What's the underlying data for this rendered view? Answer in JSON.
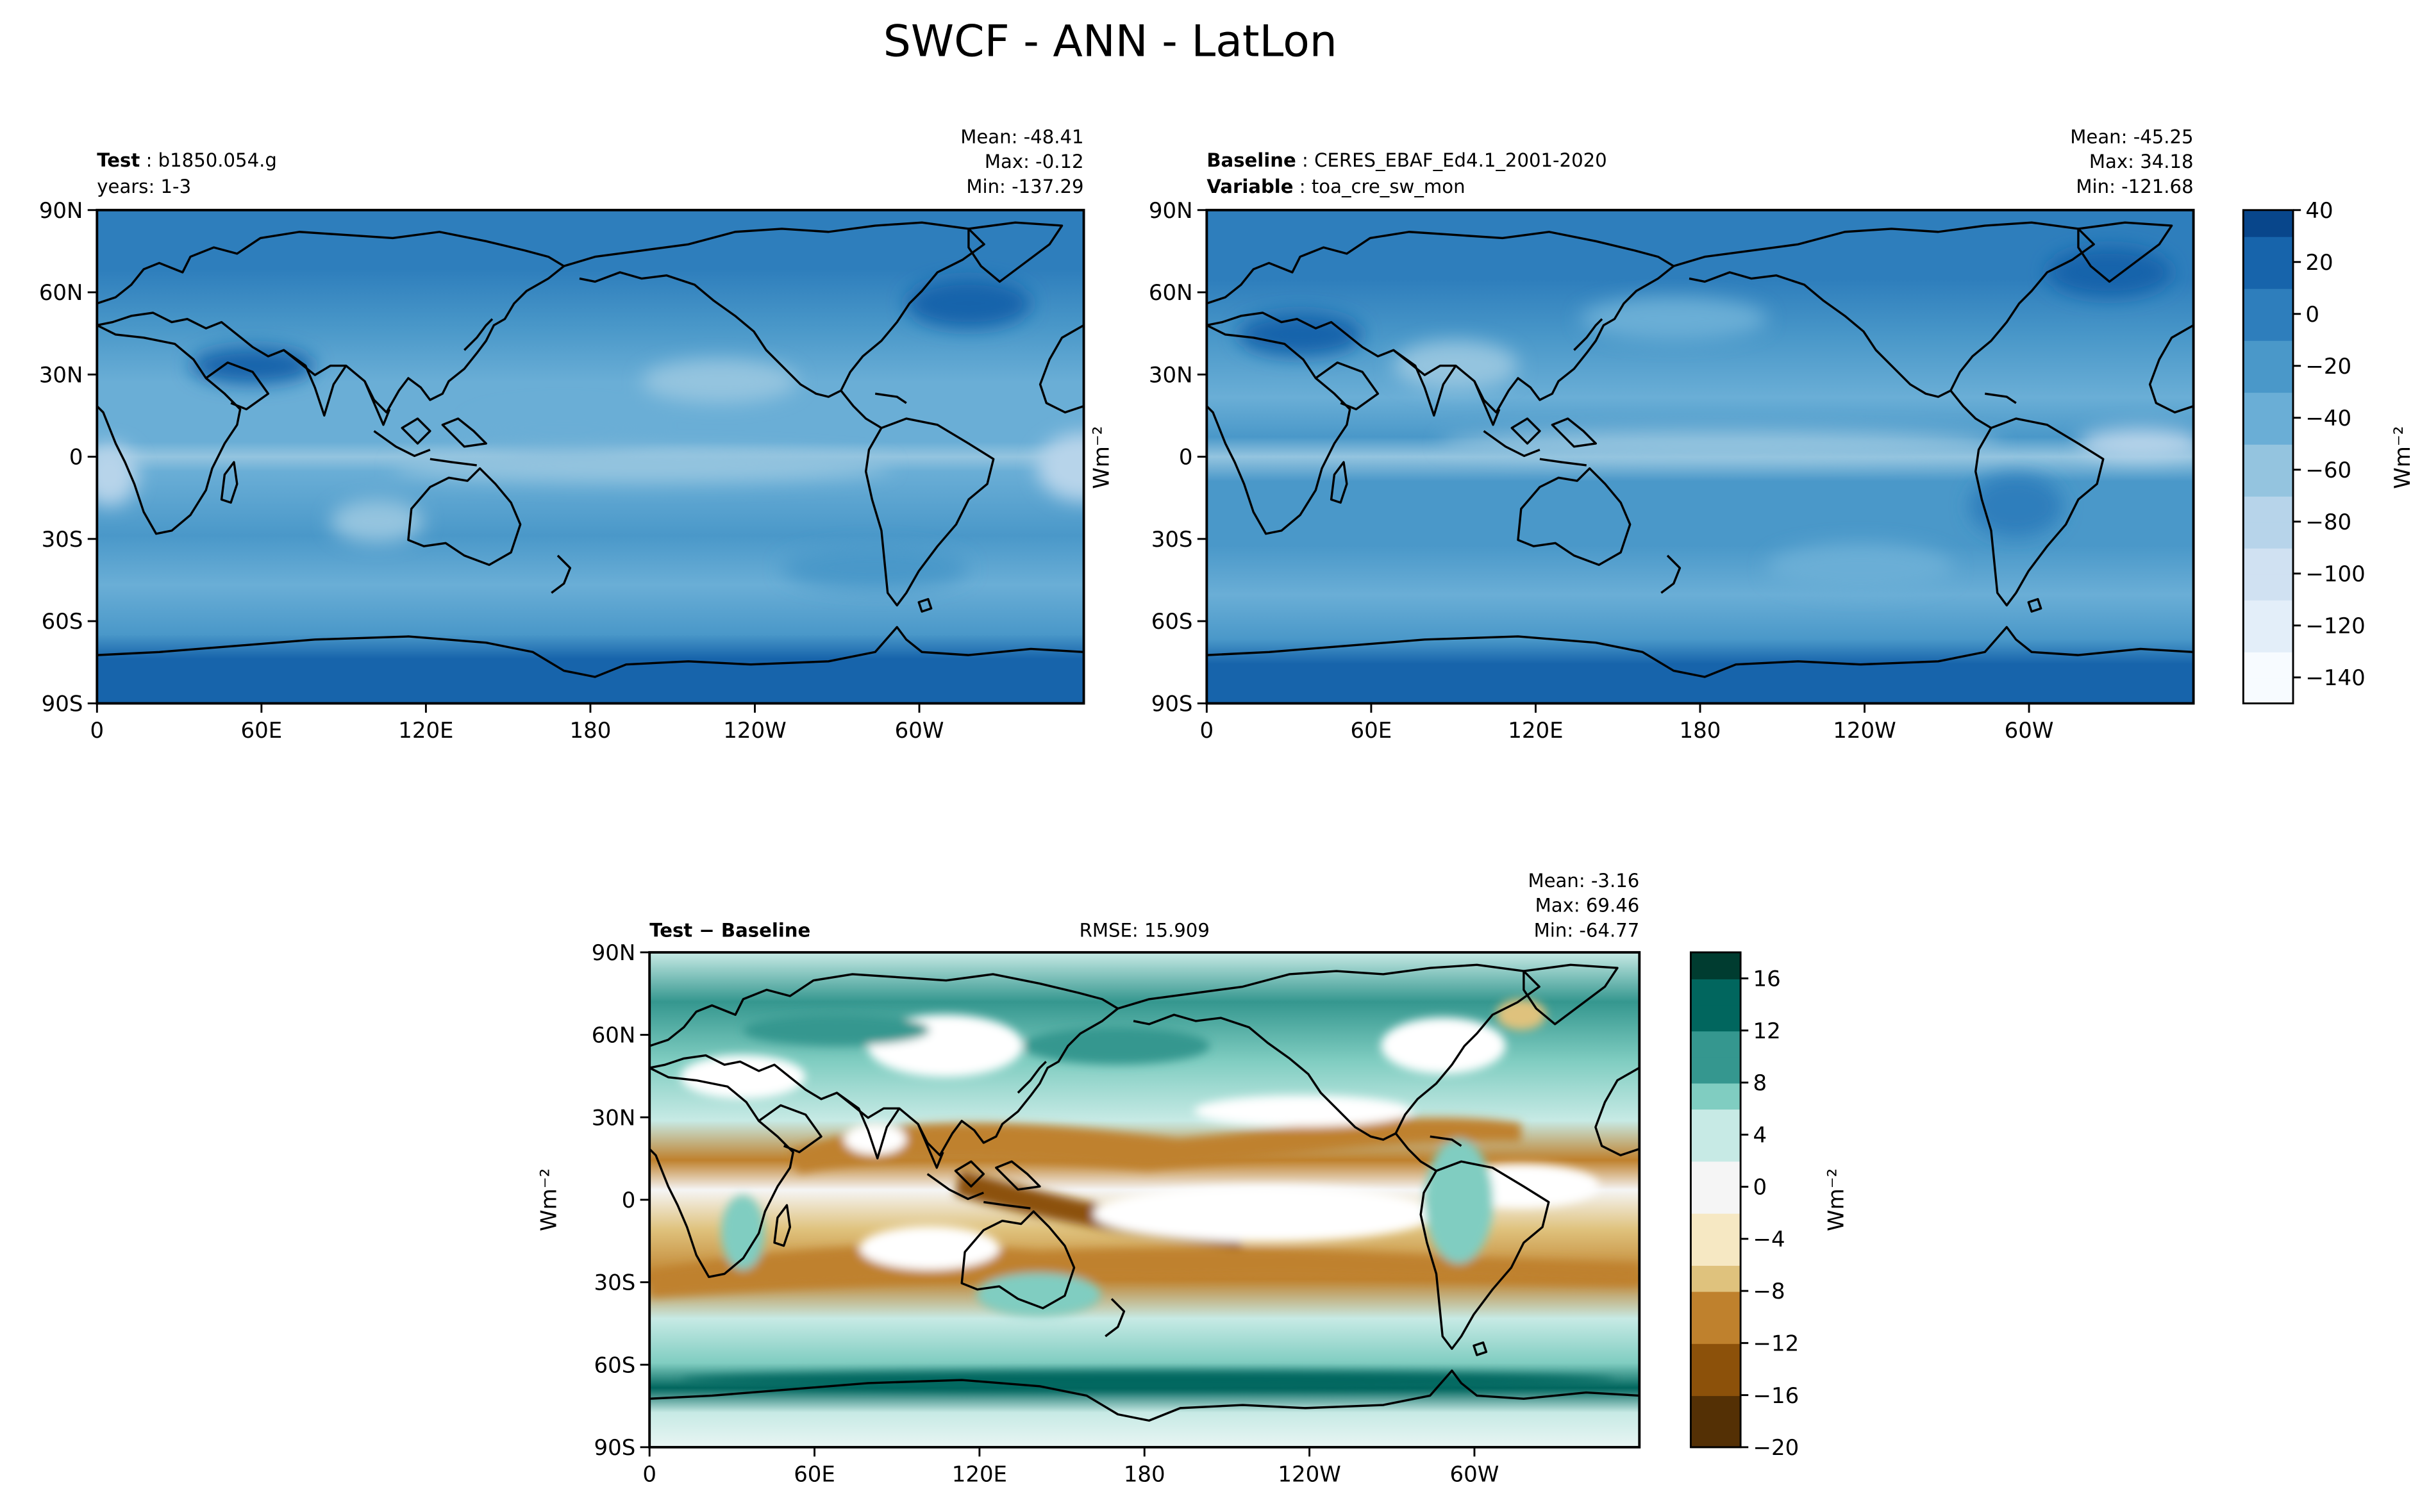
{
  "page": {
    "title": "SWCF - ANN - LatLon"
  },
  "palettes": {
    "blues": [
      "#f7fbff",
      "#e3eef9",
      "#d0e1f2",
      "#b7d4ea",
      "#94c4df",
      "#6aaed6",
      "#4a98c9",
      "#2e7ebc",
      "#1764ab",
      "#08468b"
    ],
    "brbg": [
      "#543005",
      "#8c510a",
      "#bf812d",
      "#dfc27d",
      "#f6e8c3",
      "#f5f5f5",
      "#c7eae5",
      "#80cdc1",
      "#35978f",
      "#01665e",
      "#003c30"
    ],
    "land_outline": "#000000"
  },
  "panels": {
    "test": {
      "label_bold": "Test",
      "label_value": "b1850.054.g",
      "sublabel": "years: 1-3",
      "mean": "Mean: -48.41",
      "max": "Max: -0.12",
      "min": "Min: -137.29"
    },
    "baseline": {
      "label_bold": "Baseline",
      "label_value": "CERES_EBAF_Ed4.1_2001-2020",
      "var_bold": "Variable",
      "var_value": "toa_cre_sw_mon",
      "mean": "Mean: -45.25",
      "max": "Max: 34.18",
      "min": "Min: -121.68"
    },
    "diff": {
      "label": "Test − Baseline",
      "rmse": "RMSE: 15.909",
      "mean": "Mean: -3.16",
      "max": "Max: 69.46",
      "min": "Min: -64.77"
    }
  },
  "axes": {
    "lat_ticks": [
      "90N",
      "60N",
      "30N",
      "0",
      "30S",
      "60S",
      "90S"
    ],
    "lon_ticks": [
      "0",
      "60E",
      "120E",
      "180",
      "120W",
      "60W"
    ],
    "units": "Wm⁻²"
  },
  "chart_data": [
    {
      "type": "heatmap",
      "panel": "test",
      "variable": "SWCF",
      "x_ticks": [
        "0",
        "60E",
        "120E",
        "180",
        "120W",
        "60W"
      ],
      "y_ticks": [
        "90N",
        "60N",
        "30N",
        "0",
        "30S",
        "60S",
        "90S"
      ],
      "stats": {
        "mean": -48.41,
        "max": -0.12,
        "min": -137.29
      },
      "colorbar": {
        "ticks": [
          40,
          20,
          0,
          -20,
          -40,
          -60,
          -80,
          -100,
          -120,
          -140
        ],
        "range": [
          -150,
          40
        ],
        "label": "Wm⁻²"
      }
    },
    {
      "type": "heatmap",
      "panel": "baseline",
      "variable": "toa_cre_sw_mon",
      "x_ticks": [
        "0",
        "60E",
        "120E",
        "180",
        "120W",
        "60W"
      ],
      "y_ticks": [
        "90N",
        "60N",
        "30N",
        "0",
        "30S",
        "60S",
        "90S"
      ],
      "stats": {
        "mean": -45.25,
        "max": 34.18,
        "min": -121.68
      }
    },
    {
      "type": "heatmap",
      "panel": "diff",
      "x_ticks": [
        "0",
        "60E",
        "120E",
        "180",
        "120W",
        "60W"
      ],
      "y_ticks": [
        "90N",
        "60N",
        "30N",
        "0",
        "30S",
        "60S",
        "90S"
      ],
      "stats": {
        "mean": -3.16,
        "max": 69.46,
        "min": -64.77,
        "rmse": 15.909
      },
      "colorbar": {
        "ticks": [
          16,
          12,
          8,
          4,
          0,
          -4,
          -8,
          -12,
          -16,
          -20
        ],
        "range": [
          -20,
          18
        ],
        "label": "Wm⁻²"
      }
    }
  ]
}
